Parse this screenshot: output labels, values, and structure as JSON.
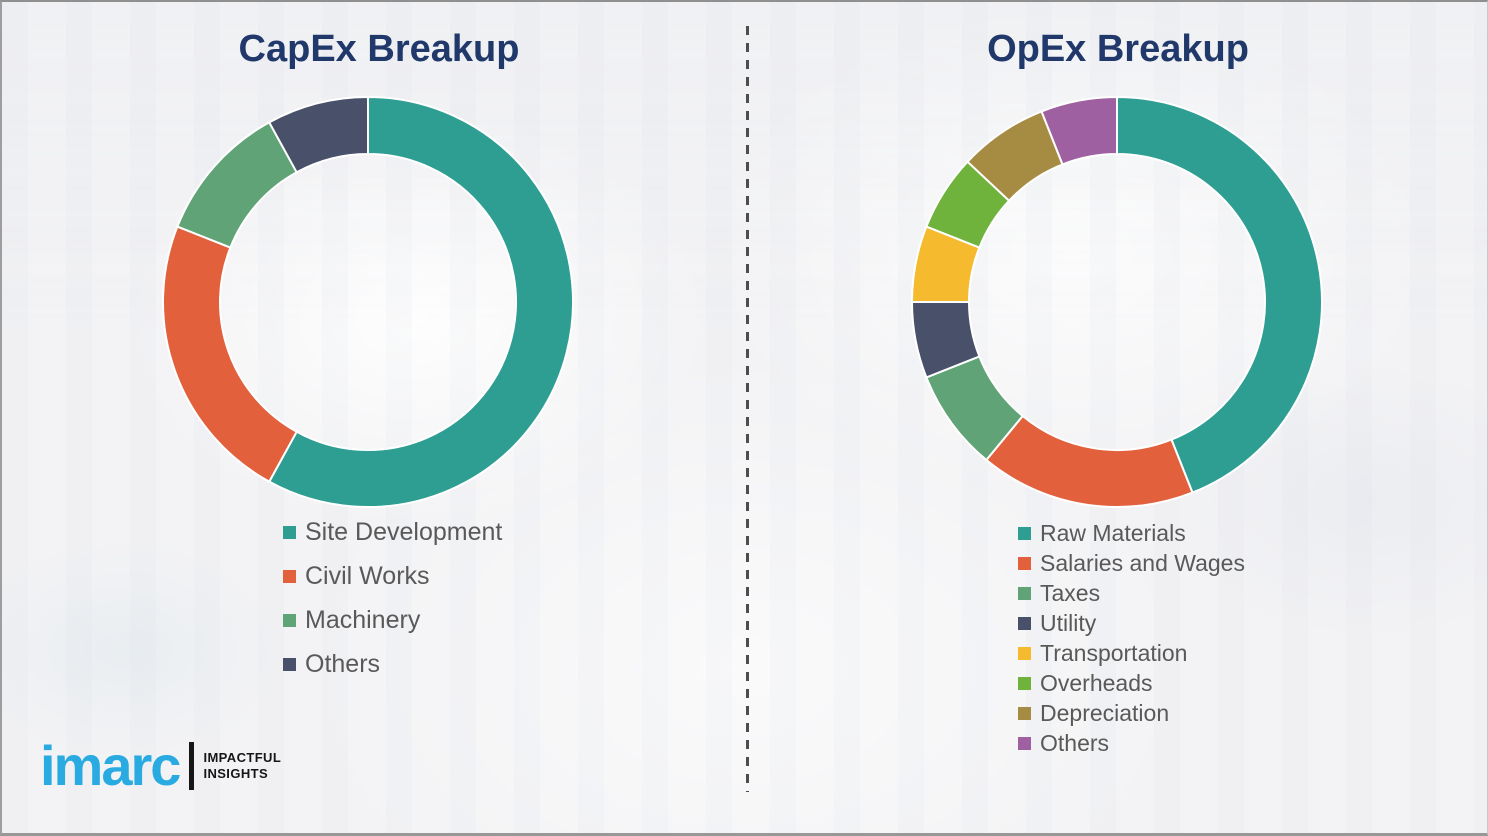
{
  "page": {
    "background_color": "#f3f3f5",
    "divider_color": "#4d4d4d",
    "title_color": "#21386B",
    "legend_text_color": "#595959"
  },
  "chart_data": [
    {
      "type": "pie",
      "subtype": "donut",
      "title": "CapEx Breakup",
      "labels": [
        "Site Development",
        "Civil Works",
        "Machinery",
        "Others"
      ],
      "values": [
        58,
        23,
        11,
        8
      ],
      "colors": [
        "#2E9E93",
        "#E2603C",
        "#5FA376",
        "#48506A"
      ],
      "start_angle_deg": 0,
      "direction": "clockwise",
      "legend_position": "below-left",
      "value_labels_shown": false
    },
    {
      "type": "pie",
      "subtype": "donut",
      "title": "OpEx Breakup",
      "labels": [
        "Raw Materials",
        "Salaries and Wages",
        "Taxes",
        "Utility",
        "Transportation",
        "Overheads",
        "Depreciation",
        "Others"
      ],
      "values": [
        44,
        17,
        8,
        6,
        6,
        6,
        7,
        6
      ],
      "colors": [
        "#2E9E93",
        "#E2603C",
        "#5FA376",
        "#48506A",
        "#F6BA2E",
        "#70B33C",
        "#A68C42",
        "#9E60A0"
      ],
      "start_angle_deg": 0,
      "direction": "clockwise",
      "legend_position": "below-left",
      "value_labels_shown": false
    }
  ],
  "logo": {
    "brand": "imarc",
    "brand_color": "#29ABE2",
    "tagline_line1": "IMPACTFUL",
    "tagline_line2": "INSIGHTS"
  }
}
